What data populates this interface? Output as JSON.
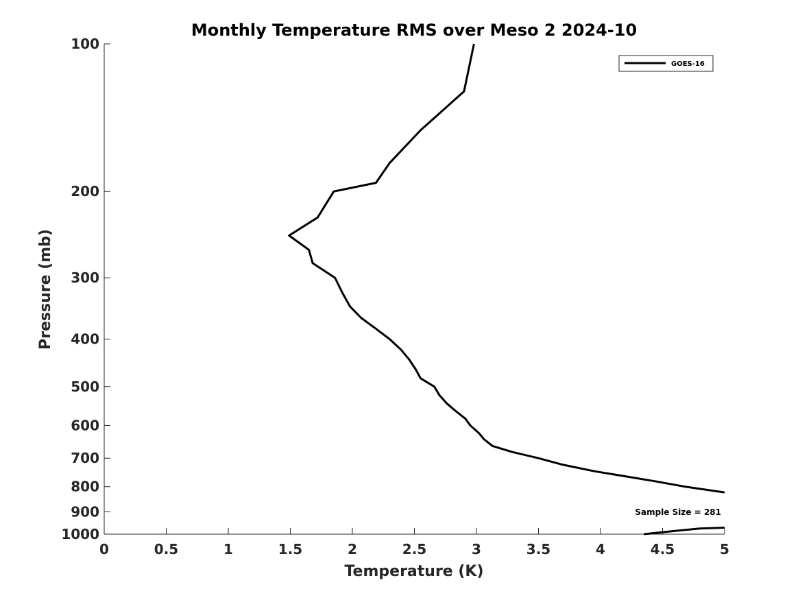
{
  "chart_data": {
    "type": "line",
    "title": "Monthly Temperature RMS over Meso 2  2024-10",
    "xlabel": "Temperature (K)",
    "ylabel": "Pressure (mb)",
    "xlim": [
      0,
      5
    ],
    "ylim": [
      100,
      1000
    ],
    "yscale": "log",
    "y_reversed": true,
    "xticks": [
      0,
      0.5,
      1,
      1.5,
      2,
      2.5,
      3,
      3.5,
      4,
      4.5,
      5
    ],
    "xtick_labels": [
      "0",
      "0.5",
      "1",
      "1.5",
      "2",
      "2.5",
      "3",
      "3.5",
      "4",
      "4.5",
      "5"
    ],
    "yticks": [
      100,
      200,
      300,
      400,
      500,
      600,
      700,
      800,
      900,
      1000
    ],
    "ytick_labels": [
      "100",
      "200",
      "300",
      "400",
      "500",
      "600",
      "700",
      "800",
      "900",
      "1000"
    ],
    "grid": false,
    "legend_position": "top-right",
    "series": [
      {
        "name": "GOES-16",
        "color": "#000000",
        "points": [
          [
            2.98,
            100
          ],
          [
            2.9,
            125
          ],
          [
            2.55,
            150
          ],
          [
            2.3,
            175
          ],
          [
            2.19,
            192
          ],
          [
            1.85,
            200
          ],
          [
            1.72,
            226
          ],
          [
            1.49,
            246
          ],
          [
            1.65,
            263
          ],
          [
            1.68,
            280
          ],
          [
            1.86,
            300
          ],
          [
            1.92,
            322
          ],
          [
            1.98,
            343
          ],
          [
            2.07,
            362
          ],
          [
            2.19,
            381
          ],
          [
            2.3,
            400
          ],
          [
            2.39,
            420
          ],
          [
            2.46,
            441
          ],
          [
            2.51,
            461
          ],
          [
            2.55,
            481
          ],
          [
            2.66,
            500
          ],
          [
            2.7,
            520
          ],
          [
            2.76,
            541
          ],
          [
            2.83,
            560
          ],
          [
            2.91,
            581
          ],
          [
            2.95,
            600
          ],
          [
            3.02,
            622
          ],
          [
            3.06,
            640
          ],
          [
            3.13,
            661
          ],
          [
            3.29,
            680
          ],
          [
            3.5,
            700
          ],
          [
            3.7,
            722
          ],
          [
            3.95,
            744
          ],
          [
            4.2,
            762
          ],
          [
            4.45,
            781
          ],
          [
            4.68,
            800
          ],
          [
            5.0,
            822
          ]
        ],
        "surface_points": [
          [
            4.35,
            1000
          ],
          [
            4.6,
            985
          ],
          [
            4.8,
            974
          ],
          [
            5.0,
            970
          ]
        ]
      }
    ],
    "annotations": [
      "Sample Size = 281"
    ]
  }
}
